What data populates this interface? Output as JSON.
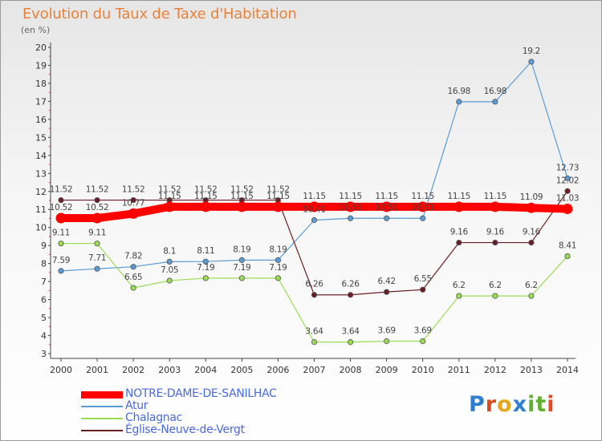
{
  "header": {
    "title": "Evolution du Taux de Taxe d'Habitation",
    "unit": "(en %)"
  },
  "chart_data": {
    "type": "line",
    "categories": [
      "2000",
      "2001",
      "2002",
      "2003",
      "2004",
      "2005",
      "2006",
      "2007",
      "2008",
      "2009",
      "2010",
      "2011",
      "2012",
      "2013",
      "2014"
    ],
    "ylim": [
      3,
      20
    ],
    "yticks": [
      3,
      4,
      5,
      6,
      7,
      8,
      9,
      10,
      11,
      12,
      13,
      14,
      15,
      16,
      17,
      18,
      19,
      20
    ],
    "grid": false,
    "legend_position": "bottom-left",
    "series": [
      {
        "name": "NOTRE-DAME-DE-SANILHAC",
        "color": "#ff0000",
        "width": 10,
        "values": [
          10.52,
          10.52,
          10.77,
          11.15,
          11.15,
          11.15,
          11.15,
          11.15,
          11.15,
          11.15,
          11.15,
          11.15,
          11.15,
          11.09,
          11.03
        ],
        "labels": [
          "10.52",
          "10.52",
          "10.77",
          "11.15",
          "11.15",
          "11.15",
          "11.15",
          "11.15",
          "11.15",
          "11.15",
          "11.15",
          "11.15",
          "11.15",
          "11.09",
          "11.03"
        ]
      },
      {
        "name": "Atur",
        "color": "#5b9bd5",
        "width": 1.2,
        "values": [
          7.59,
          7.71,
          7.82,
          8.1,
          8.11,
          8.19,
          8.19,
          10.41,
          10.51,
          10.51,
          10.51,
          16.98,
          16.98,
          19.2,
          12.73
        ],
        "labels": [
          "7.59",
          "7.71",
          "7.82",
          "8.1",
          "8.11",
          "8.19",
          "8.19",
          "10.41",
          "10.51",
          "10.51",
          "10.51",
          "16.98",
          "16.98",
          "19.2",
          "12.73"
        ]
      },
      {
        "name": "Chalagnac",
        "color": "#99dd55",
        "width": 1.2,
        "values": [
          9.11,
          9.11,
          6.65,
          7.05,
          7.19,
          7.19,
          7.19,
          3.64,
          3.64,
          3.69,
          3.69,
          6.2,
          6.2,
          6.2,
          8.41
        ],
        "labels": [
          "9.11",
          "9.11",
          "6.65",
          "7.05",
          "7.19",
          "7.19",
          "7.19",
          "3.64",
          "3.64",
          "3.69",
          "3.69",
          "6.2",
          "6.2",
          "6.2",
          "8.41"
        ]
      },
      {
        "name": "Église-Neuve-de-Vergt",
        "color": "#6b1f24",
        "width": 1.2,
        "values": [
          11.52,
          11.52,
          11.52,
          11.52,
          11.52,
          11.52,
          11.52,
          6.26,
          6.26,
          6.42,
          6.55,
          9.16,
          9.16,
          9.16,
          12.02
        ],
        "labels": [
          "11.52",
          "11.52",
          "11.52",
          "11.52",
          "11.52",
          "11.52",
          "11.52",
          "6.26",
          "6.26",
          "6.42",
          "6.55",
          "9.16",
          "9.16",
          "9.16",
          "12.02"
        ]
      }
    ]
  },
  "brand": {
    "letters": [
      "P",
      "r",
      "o",
      "x",
      "i",
      "t",
      "i"
    ],
    "colors": [
      "#2f7fd0",
      "#d94c1d",
      "#e6a81a",
      "#2f7fd0",
      "#5fb030",
      "#5fb030",
      "#e04b2a"
    ]
  }
}
